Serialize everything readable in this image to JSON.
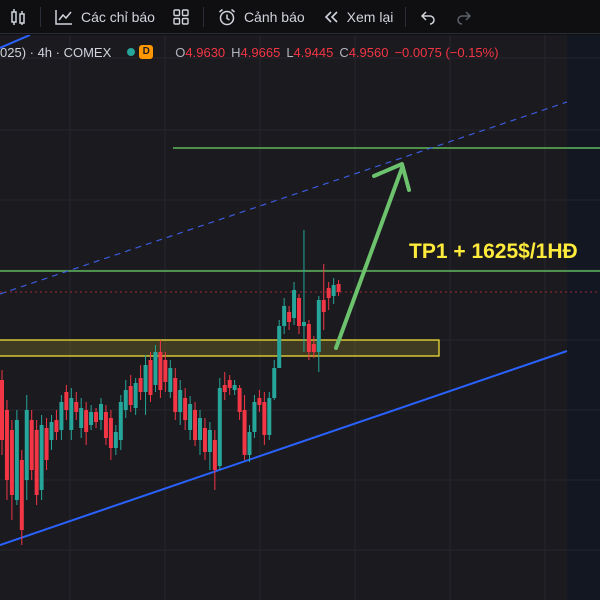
{
  "toolbar": {
    "indicators_label": "Các chỉ báo",
    "alerts_label": "Cảnh báo",
    "replay_label": "Xem lại"
  },
  "legend": {
    "symbol_text": "025) · 4h · COMEX",
    "status_badge": "D",
    "open_key": "O",
    "open_value": "4.9630",
    "high_key": "H",
    "high_value": "4.9665",
    "low_key": "L",
    "low_value": "4.9445",
    "close_key": "C",
    "close_value": "4.9560",
    "change_value": "−0.0075 (−0.15%)"
  },
  "annotation": {
    "tp_label": "TP1 + 1625$/1HĐ"
  },
  "colors": {
    "up": "#26a69a",
    "down": "#f23645",
    "trendline": "#2962ff",
    "level_line": "#5cb85c",
    "arrow": "#66bb6a",
    "zone_border": "#ffeb3b",
    "label": "#ffeb3b"
  }
}
